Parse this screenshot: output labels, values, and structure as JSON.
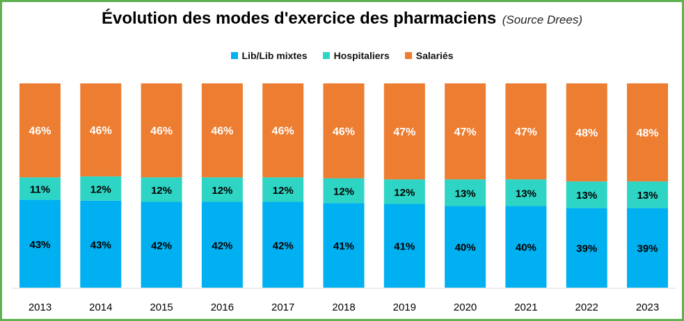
{
  "chart_data": {
    "type": "bar",
    "stacked": true,
    "normalized": true,
    "title": "Évolution des modes d'exercice des pharmaciens",
    "subtitle": "(Source Drees)",
    "categories": [
      "2013",
      "2014",
      "2015",
      "2016",
      "2017",
      "2018",
      "2019",
      "2020",
      "2021",
      "2022",
      "2023"
    ],
    "series": [
      {
        "name": "Lib/Lib mixtes",
        "color": "#00b0f0",
        "values": [
          43,
          43,
          42,
          42,
          42,
          41,
          41,
          40,
          40,
          39,
          39
        ],
        "labels": [
          "43%",
          "43%",
          "42%",
          "42%",
          "42%",
          "41%",
          "41%",
          "40%",
          "40%",
          "39%",
          "39%"
        ]
      },
      {
        "name": "Hospitaliers",
        "color": "#2ed5c4",
        "values": [
          11,
          12,
          12,
          12,
          12,
          12,
          12,
          13,
          13,
          13,
          13
        ],
        "labels": [
          "11%",
          "12%",
          "12%",
          "12%",
          "12%",
          "12%",
          "12%",
          "13%",
          "13%",
          "13%",
          "13%"
        ]
      },
      {
        "name": "Salariés",
        "color": "#ed7d31",
        "values": [
          46,
          46,
          46,
          46,
          46,
          46,
          47,
          47,
          47,
          48,
          48
        ],
        "labels": [
          "46%",
          "46%",
          "46%",
          "46%",
          "46%",
          "46%",
          "47%",
          "47%",
          "47%",
          "48%",
          "48%"
        ]
      }
    ],
    "legend_position": "top",
    "xlabel": "",
    "ylabel": "",
    "ylim": [
      0,
      100
    ],
    "grid": false
  }
}
